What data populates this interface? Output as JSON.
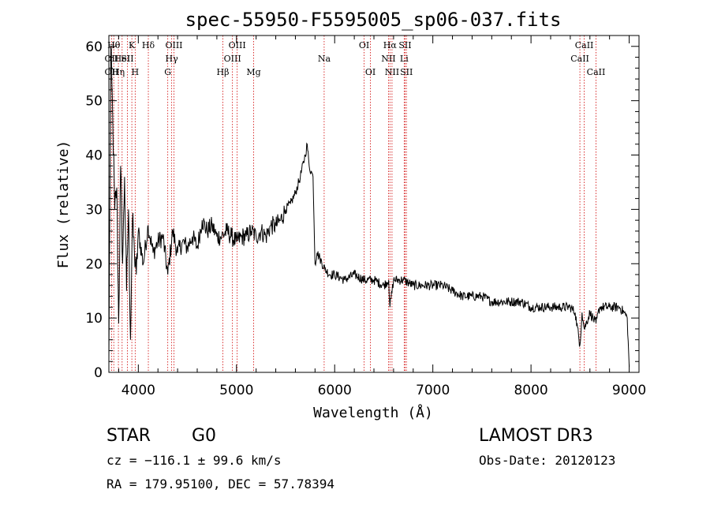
{
  "chart_data": {
    "type": "line",
    "title": "spec-55950-F5595005_sp06-037.fits",
    "xlabel": "Wavelength (Å)",
    "ylabel": "Flux (relative)",
    "xlim": [
      3700,
      9100
    ],
    "ylim": [
      0,
      62
    ],
    "xticks": [
      4000,
      5000,
      6000,
      7000,
      8000,
      9000
    ],
    "yticks": [
      0,
      10,
      20,
      30,
      40,
      50,
      60
    ],
    "grid": false,
    "series": [
      {
        "name": "flux",
        "x": [
          3700,
          3720,
          3740,
          3760,
          3780,
          3800,
          3820,
          3840,
          3860,
          3880,
          3900,
          3920,
          3940,
          3960,
          3980,
          4000,
          4050,
          4100,
          4150,
          4200,
          4250,
          4300,
          4350,
          4400,
          4450,
          4500,
          4550,
          4600,
          4650,
          4700,
          4750,
          4800,
          4850,
          4900,
          4950,
          5000,
          5050,
          5100,
          5150,
          5200,
          5250,
          5300,
          5350,
          5400,
          5450,
          5500,
          5550,
          5600,
          5650,
          5700,
          5720,
          5740,
          5760,
          5780,
          5800,
          5820,
          5850,
          5900,
          5950,
          6000,
          6100,
          6200,
          6300,
          6400,
          6500,
          6550,
          6563,
          6600,
          6700,
          6800,
          6900,
          7000,
          7100,
          7200,
          7300,
          7400,
          7500,
          7600,
          7700,
          7800,
          7900,
          8000,
          8100,
          8200,
          8300,
          8400,
          8450,
          8498,
          8520,
          8542,
          8600,
          8662,
          8700,
          8800,
          8900,
          8950,
          8980,
          9000
        ],
        "y": [
          2,
          60,
          46,
          30,
          34,
          9,
          38,
          20,
          36,
          15,
          30,
          6,
          28,
          22,
          18,
          26,
          20,
          27,
          22,
          24,
          25,
          18,
          26,
          22,
          24,
          23,
          25,
          23,
          28,
          26,
          27,
          25,
          25,
          26,
          25,
          24,
          25,
          25,
          26,
          25,
          26,
          25,
          27,
          27,
          28,
          30,
          31,
          33,
          36,
          40,
          42,
          38,
          37,
          36,
          20,
          22,
          21,
          19,
          18,
          18,
          17,
          18,
          17,
          17,
          16,
          17,
          12,
          17,
          17,
          16,
          16,
          16,
          16,
          15,
          14,
          14,
          14,
          13,
          13,
          13,
          13,
          12,
          12,
          12,
          12,
          12,
          11,
          5,
          11,
          8,
          11,
          9,
          12,
          12,
          12,
          11,
          10,
          1
        ]
      }
    ],
    "line_markers": [
      {
        "wl": 3727,
        "rows": [
          {
            "row": 1,
            "label": "OII"
          },
          {
            "row": 2,
            "label": "OII"
          }
        ]
      },
      {
        "wl": 3750,
        "rows": [
          {
            "row": 0,
            "label": "Hθ"
          }
        ]
      },
      {
        "wl": 3797,
        "rows": [
          {
            "row": 2,
            "label": "Hη"
          }
        ]
      },
      {
        "wl": 3835,
        "rows": [
          {
            "row": 1,
            "label": "HeI"
          }
        ]
      },
      {
        "wl": 3889,
        "rows": [
          {
            "row": 1,
            "label": "SII"
          }
        ]
      },
      {
        "wl": 3934,
        "rows": [
          {
            "row": 0,
            "label": "K"
          }
        ]
      },
      {
        "wl": 3968,
        "rows": [
          {
            "row": 2,
            "label": "H"
          }
        ]
      },
      {
        "wl": 4102,
        "rows": [
          {
            "row": 0,
            "label": "Hδ"
          }
        ]
      },
      {
        "wl": 4300,
        "rows": [
          {
            "row": 2,
            "label": "G"
          }
        ]
      },
      {
        "wl": 4340,
        "rows": [
          {
            "row": 1,
            "label": "Hγ"
          }
        ]
      },
      {
        "wl": 4363,
        "rows": [
          {
            "row": 0,
            "label": "OIII"
          }
        ]
      },
      {
        "wl": 4861,
        "rows": [
          {
            "row": 2,
            "label": "Hβ"
          }
        ]
      },
      {
        "wl": 4959,
        "rows": [
          {
            "row": 1,
            "label": "OIII"
          }
        ]
      },
      {
        "wl": 5007,
        "rows": [
          {
            "row": 0,
            "label": "OIII"
          }
        ]
      },
      {
        "wl": 5175,
        "rows": [
          {
            "row": 2,
            "label": "Mg"
          }
        ]
      },
      {
        "wl": 5893,
        "rows": [
          {
            "row": 1,
            "label": "Na"
          }
        ]
      },
      {
        "wl": 6300,
        "rows": [
          {
            "row": 0,
            "label": "OI"
          }
        ]
      },
      {
        "wl": 6364,
        "rows": [
          {
            "row": 2,
            "label": "OI"
          }
        ]
      },
      {
        "wl": 6548,
        "rows": [
          {
            "row": 1,
            "label": "NII"
          }
        ]
      },
      {
        "wl": 6563,
        "rows": [
          {
            "row": 0,
            "label": "Hα"
          }
        ]
      },
      {
        "wl": 6584,
        "rows": [
          {
            "row": 2,
            "label": "NII"
          }
        ]
      },
      {
        "wl": 6708,
        "rows": [
          {
            "row": 1,
            "label": "Li"
          }
        ]
      },
      {
        "wl": 6717,
        "rows": [
          {
            "row": 0,
            "label": "SII"
          }
        ]
      },
      {
        "wl": 6731,
        "rows": [
          {
            "row": 2,
            "label": "SII"
          }
        ]
      },
      {
        "wl": 8498,
        "rows": [
          {
            "row": 1,
            "label": "CaII"
          }
        ]
      },
      {
        "wl": 8542,
        "rows": [
          {
            "row": 0,
            "label": "CaII"
          }
        ]
      },
      {
        "wl": 8662,
        "rows": [
          {
            "row": 2,
            "label": "CaII"
          }
        ]
      }
    ],
    "colors": {
      "line": "#000000",
      "marker": "#d00000",
      "axis": "#000000"
    }
  },
  "info": {
    "class": "STAR",
    "subclass": "G0",
    "survey": "LAMOST DR3",
    "cz": "cz = −116.1 ± 99.6 km/s",
    "obs_date": "Obs-Date: 20120123",
    "coords": "RA = 179.95100, DEC =  57.78394"
  }
}
